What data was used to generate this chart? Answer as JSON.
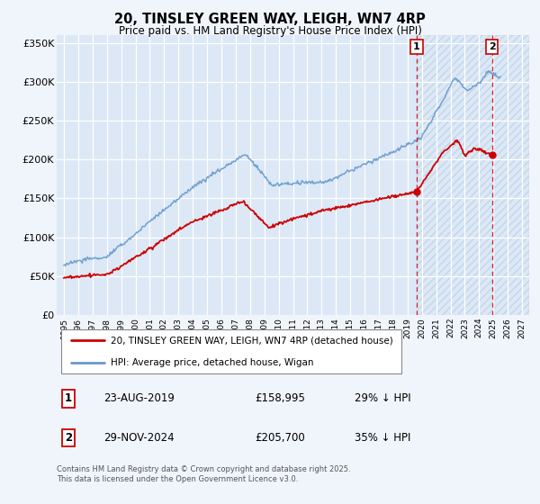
{
  "title": "20, TINSLEY GREEN WAY, LEIGH, WN7 4RP",
  "subtitle": "Price paid vs. HM Land Registry's House Price Index (HPI)",
  "background_color": "#f0f4fb",
  "plot_bg_color": "#dce8f5",
  "hpi_color": "#6699cc",
  "price_color": "#cc0000",
  "marker1_date": 2019.644,
  "marker1_price": 158995,
  "marker2_date": 2024.913,
  "marker2_price": 205700,
  "highlight_start": 2019.644,
  "legend_label1": "20, TINSLEY GREEN WAY, LEIGH, WN7 4RP (detached house)",
  "legend_label2": "HPI: Average price, detached house, Wigan",
  "footer": "Contains HM Land Registry data © Crown copyright and database right 2025.\nThis data is licensed under the Open Government Licence v3.0.",
  "ylim": [
    0,
    360000
  ],
  "xlim": [
    1994.5,
    2027.5
  ],
  "yticks": [
    0,
    50000,
    100000,
    150000,
    200000,
    250000,
    300000,
    350000
  ],
  "ytick_labels": [
    "£0",
    "£50K",
    "£100K",
    "£150K",
    "£200K",
    "£250K",
    "£300K",
    "£350K"
  ]
}
